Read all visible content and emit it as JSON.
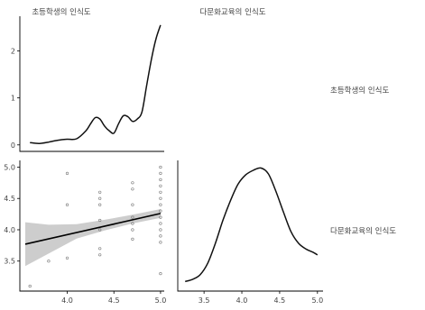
{
  "chart_data": {
    "type": "scatter",
    "layout": "pairs-plot 2x2 (density on diagonal, scatter with linear fit and 95% band lower-left)",
    "variables": [
      "초등학생의 인식도",
      "다문화교육의 인식도"
    ],
    "column_titles": [
      "초등학생의 인식도",
      "다문화교육의 인식도"
    ],
    "row_labels": [
      "초등학생의 인식도",
      "다문화교육의 인식도"
    ],
    "panels": [
      {
        "position": "top-left",
        "type": "line",
        "variable": "초등학생의 인식도",
        "ylim": [
          -0.1,
          2.7
        ],
        "yticks": [
          "0",
          "1",
          "2"
        ],
        "x": [
          3.6,
          3.7,
          3.8,
          3.9,
          4.0,
          4.1,
          4.2,
          4.25,
          4.3,
          4.35,
          4.4,
          4.45,
          4.5,
          4.55,
          4.6,
          4.65,
          4.7,
          4.75,
          4.8,
          4.85,
          4.9,
          4.95,
          5.0
        ],
        "y": [
          0.05,
          0.03,
          0.06,
          0.1,
          0.12,
          0.13,
          0.3,
          0.45,
          0.58,
          0.55,
          0.4,
          0.3,
          0.25,
          0.45,
          0.62,
          0.6,
          0.5,
          0.55,
          0.7,
          1.25,
          1.8,
          2.25,
          2.55
        ]
      },
      {
        "position": "bottom-left",
        "type": "scatter",
        "xlabel_var": "초등학생의 인식도",
        "ylabel_var": "다문화교육의 인식도",
        "xlim": [
          3.55,
          5.02
        ],
        "ylim": [
          3.05,
          5.05
        ],
        "xticks": [
          "4.0",
          "4.5",
          "5.0"
        ],
        "yticks": [
          "3.5",
          "4.0",
          "4.5",
          "5.0"
        ],
        "points": [
          [
            3.6,
            3.1
          ],
          [
            3.8,
            3.5
          ],
          [
            4.0,
            4.9
          ],
          [
            4.0,
            3.55
          ],
          [
            4.0,
            4.4
          ],
          [
            4.35,
            4.6
          ],
          [
            4.35,
            4.5
          ],
          [
            4.35,
            4.4
          ],
          [
            4.35,
            4.15
          ],
          [
            4.35,
            4.0
          ],
          [
            4.35,
            3.7
          ],
          [
            4.35,
            3.6
          ],
          [
            4.7,
            4.75
          ],
          [
            4.7,
            4.65
          ],
          [
            4.7,
            4.4
          ],
          [
            4.7,
            4.2
          ],
          [
            4.7,
            4.1
          ],
          [
            4.7,
            4.0
          ],
          [
            4.7,
            3.85
          ],
          [
            5.0,
            5.0
          ],
          [
            5.0,
            4.9
          ],
          [
            5.0,
            4.8
          ],
          [
            5.0,
            4.7
          ],
          [
            5.0,
            4.6
          ],
          [
            5.0,
            4.5
          ],
          [
            5.0,
            4.4
          ],
          [
            5.0,
            4.3
          ],
          [
            5.0,
            4.2
          ],
          [
            5.0,
            4.1
          ],
          [
            5.0,
            4.0
          ],
          [
            5.0,
            3.9
          ],
          [
            5.0,
            3.8
          ],
          [
            5.0,
            3.3
          ]
        ],
        "fit_line": [
          [
            3.55,
            3.77
          ],
          [
            5.0,
            4.26
          ]
        ],
        "band_upper": [
          [
            3.55,
            4.12
          ],
          [
            3.8,
            4.08
          ],
          [
            4.1,
            4.09
          ],
          [
            4.4,
            4.16
          ],
          [
            4.7,
            4.24
          ],
          [
            5.0,
            4.33
          ]
        ],
        "band_lower": [
          [
            3.55,
            3.42
          ],
          [
            3.8,
            3.62
          ],
          [
            4.1,
            3.86
          ],
          [
            4.4,
            3.99
          ],
          [
            4.7,
            4.1
          ],
          [
            5.0,
            4.19
          ]
        ]
      },
      {
        "position": "bottom-right",
        "type": "line",
        "variable": "다문화교육의 인식도",
        "xlim": [
          3.2,
          5.05
        ],
        "xticks": [
          "3.5",
          "4.0",
          "4.5",
          "5.0"
        ],
        "x": [
          3.25,
          3.35,
          3.45,
          3.55,
          3.65,
          3.75,
          3.85,
          3.95,
          4.05,
          4.15,
          4.25,
          4.35,
          4.45,
          4.55,
          4.65,
          4.75,
          4.85,
          4.95,
          5.0
        ],
        "y": [
          0.02,
          0.04,
          0.08,
          0.18,
          0.35,
          0.55,
          0.72,
          0.86,
          0.94,
          0.98,
          1.0,
          0.95,
          0.8,
          0.62,
          0.45,
          0.35,
          0.3,
          0.27,
          0.25
        ]
      }
    ]
  }
}
